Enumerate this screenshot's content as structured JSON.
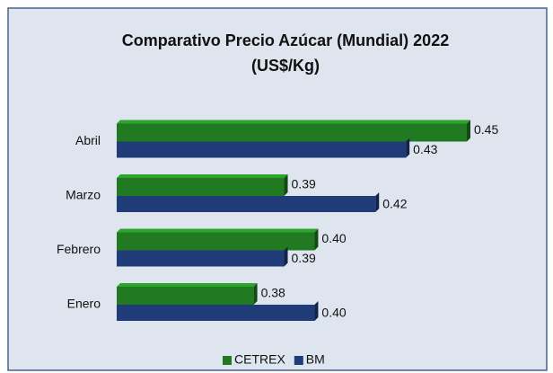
{
  "chart_data": {
    "type": "barh",
    "title": "Comparativo Precio Azúcar (Mundial) 2022",
    "subtitle": "(US$/Kg)",
    "categories": [
      "Enero",
      "Febrero",
      "Marzo",
      "Abril"
    ],
    "series": [
      {
        "name": "CETREX",
        "color": "#217a21",
        "values": [
          0.38,
          0.4,
          0.39,
          0.45
        ],
        "value_labels": [
          "0.38",
          "0.40",
          "0.39",
          "0.45"
        ]
      },
      {
        "name": "BM",
        "color": "#1f3b78",
        "values": [
          0.4,
          0.39,
          0.42,
          0.43
        ],
        "value_labels": [
          "0.40",
          "0.39",
          "0.42",
          "0.43"
        ]
      }
    ],
    "xlim": [
      0.335,
      0.45
    ],
    "legend": "bottom"
  }
}
